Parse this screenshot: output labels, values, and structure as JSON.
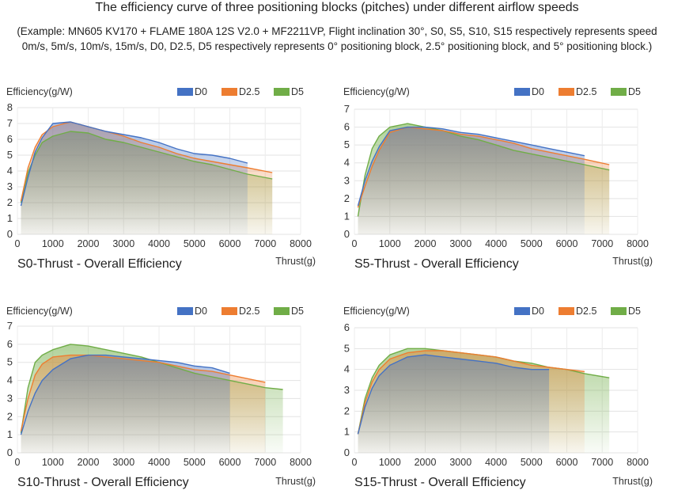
{
  "page": {
    "title": "The efficiency curve of three positioning blocks (pitches) under different airflow speeds",
    "subtitle": "(Example: MN605 KV170 + FLAME 180A 12S V2.0 + MF2211VP, Flight inclination 30°, S0, S5, S10, S15 respectively represents speed 0m/s, 5m/s, 10m/s, 15m/s, D0, D2.5, D5 respectively represents 0° positioning block, 2.5° positioning block, and 5° positioning block.)"
  },
  "colors": {
    "D0": "#4472c4",
    "D2.5": "#ed7d31",
    "D5": "#70ad47"
  },
  "chart_data": [
    {
      "type": "area",
      "title": "S0-Thrust - Overall Efficiency",
      "xlabel": "Thrust(g)",
      "ylabel": "Efficiency(g/W)",
      "xlim": [
        0,
        8000
      ],
      "ylim": [
        0,
        8
      ],
      "xticks": [
        "0",
        "1000",
        "2000",
        "3000",
        "4000",
        "5000",
        "6000",
        "7000",
        "8000"
      ],
      "yticks": [
        "0",
        "1",
        "2",
        "3",
        "4",
        "5",
        "6",
        "7",
        "8"
      ],
      "legend": "top-right",
      "grid": true,
      "series": [
        {
          "name": "D0",
          "points": [
            [
              100,
              1.8
            ],
            [
              300,
              3.6
            ],
            [
              500,
              5.2
            ],
            [
              700,
              6.1
            ],
            [
              1000,
              7.0
            ],
            [
              1500,
              7.1
            ],
            [
              2000,
              6.8
            ],
            [
              2500,
              6.5
            ],
            [
              3000,
              6.3
            ],
            [
              3500,
              6.1
            ],
            [
              4000,
              5.8
            ],
            [
              4500,
              5.4
            ],
            [
              5000,
              5.1
            ],
            [
              5500,
              5.0
            ],
            [
              6000,
              4.8
            ],
            [
              6500,
              4.5
            ]
          ]
        },
        {
          "name": "D2.5",
          "points": [
            [
              100,
              2.1
            ],
            [
              300,
              4.2
            ],
            [
              500,
              5.5
            ],
            [
              700,
              6.3
            ],
            [
              1000,
              6.8
            ],
            [
              1500,
              7.1
            ],
            [
              2000,
              6.8
            ],
            [
              2500,
              6.5
            ],
            [
              3000,
              6.2
            ],
            [
              3500,
              5.8
            ],
            [
              4000,
              5.5
            ],
            [
              4500,
              5.1
            ],
            [
              5000,
              4.8
            ],
            [
              5500,
              4.6
            ],
            [
              6000,
              4.4
            ],
            [
              6500,
              4.2
            ],
            [
              7200,
              3.9
            ]
          ]
        },
        {
          "name": "D5",
          "points": [
            [
              100,
              2.0
            ],
            [
              300,
              3.9
            ],
            [
              500,
              5.0
            ],
            [
              700,
              5.8
            ],
            [
              1000,
              6.2
            ],
            [
              1500,
              6.5
            ],
            [
              2000,
              6.4
            ],
            [
              2500,
              6.0
            ],
            [
              3000,
              5.8
            ],
            [
              3500,
              5.5
            ],
            [
              4000,
              5.2
            ],
            [
              4500,
              4.9
            ],
            [
              5000,
              4.6
            ],
            [
              5500,
              4.4
            ],
            [
              6000,
              4.1
            ],
            [
              6500,
              3.8
            ],
            [
              7200,
              3.5
            ]
          ]
        }
      ]
    },
    {
      "type": "area",
      "title": "S5-Thrust - Overall Efficiency",
      "xlabel": "Thrust(g)",
      "ylabel": "Efficiency(g/W)",
      "xlim": [
        0,
        8000
      ],
      "ylim": [
        0,
        7
      ],
      "xticks": [
        "0",
        "1000",
        "2000",
        "3000",
        "4000",
        "5000",
        "6000",
        "7000",
        "8000"
      ],
      "yticks": [
        "0",
        "1",
        "2",
        "3",
        "4",
        "5",
        "6",
        "7"
      ],
      "legend": "top-right",
      "grid": true,
      "series": [
        {
          "name": "D0",
          "points": [
            [
              100,
              1.6
            ],
            [
              300,
              3.0
            ],
            [
              500,
              4.1
            ],
            [
              700,
              4.9
            ],
            [
              1000,
              5.8
            ],
            [
              1500,
              6.0
            ],
            [
              2000,
              6.0
            ],
            [
              2500,
              5.9
            ],
            [
              3000,
              5.7
            ],
            [
              3500,
              5.6
            ],
            [
              4000,
              5.4
            ],
            [
              4500,
              5.2
            ],
            [
              5000,
              5.0
            ],
            [
              5500,
              4.8
            ],
            [
              6000,
              4.6
            ],
            [
              6500,
              4.4
            ]
          ]
        },
        {
          "name": "D2.5",
          "points": [
            [
              100,
              1.5
            ],
            [
              300,
              2.7
            ],
            [
              500,
              3.8
            ],
            [
              700,
              4.7
            ],
            [
              1000,
              5.7
            ],
            [
              1500,
              6.0
            ],
            [
              2000,
              5.9
            ],
            [
              2500,
              5.8
            ],
            [
              3000,
              5.6
            ],
            [
              3500,
              5.5
            ],
            [
              4000,
              5.3
            ],
            [
              4500,
              5.1
            ],
            [
              5000,
              4.8
            ],
            [
              5500,
              4.6
            ],
            [
              6000,
              4.4
            ],
            [
              6500,
              4.2
            ],
            [
              7200,
              3.9
            ]
          ]
        },
        {
          "name": "D5",
          "points": [
            [
              100,
              1.0
            ],
            [
              300,
              3.3
            ],
            [
              500,
              4.8
            ],
            [
              700,
              5.5
            ],
            [
              1000,
              6.0
            ],
            [
              1500,
              6.2
            ],
            [
              2000,
              6.0
            ],
            [
              2500,
              5.8
            ],
            [
              3000,
              5.5
            ],
            [
              3500,
              5.3
            ],
            [
              4000,
              5.0
            ],
            [
              4500,
              4.7
            ],
            [
              5000,
              4.5
            ],
            [
              5500,
              4.3
            ],
            [
              6000,
              4.1
            ],
            [
              6500,
              3.9
            ],
            [
              7200,
              3.6
            ]
          ]
        }
      ]
    },
    {
      "type": "area",
      "title": "S10-Thrust - Overall Efficiency",
      "xlabel": "Thrust(g)",
      "ylabel": "Efficiency(g/W)",
      "xlim": [
        0,
        8000
      ],
      "ylim": [
        0,
        7
      ],
      "xticks": [
        "0",
        "1000",
        "2000",
        "3000",
        "4000",
        "5000",
        "6000",
        "7000",
        "8000"
      ],
      "yticks": [
        "0",
        "1",
        "2",
        "3",
        "4",
        "5",
        "6",
        "7"
      ],
      "legend": "top-right",
      "grid": true,
      "series": [
        {
          "name": "D0",
          "points": [
            [
              100,
              1.0
            ],
            [
              300,
              2.3
            ],
            [
              500,
              3.3
            ],
            [
              700,
              4.0
            ],
            [
              1000,
              4.6
            ],
            [
              1500,
              5.2
            ],
            [
              2000,
              5.4
            ],
            [
              2500,
              5.4
            ],
            [
              3000,
              5.3
            ],
            [
              3500,
              5.2
            ],
            [
              4000,
              5.1
            ],
            [
              4500,
              5.0
            ],
            [
              5000,
              4.8
            ],
            [
              5500,
              4.7
            ],
            [
              6000,
              4.4
            ]
          ]
        },
        {
          "name": "D2.5",
          "points": [
            [
              100,
              1.2
            ],
            [
              300,
              3.0
            ],
            [
              500,
              4.3
            ],
            [
              700,
              4.9
            ],
            [
              1000,
              5.3
            ],
            [
              1500,
              5.4
            ],
            [
              2000,
              5.4
            ],
            [
              2500,
              5.3
            ],
            [
              3000,
              5.2
            ],
            [
              3500,
              5.1
            ],
            [
              4000,
              5.0
            ],
            [
              4500,
              4.8
            ],
            [
              5000,
              4.6
            ],
            [
              5500,
              4.5
            ],
            [
              6000,
              4.3
            ],
            [
              6500,
              4.1
            ],
            [
              7000,
              3.9
            ]
          ]
        },
        {
          "name": "D5",
          "points": [
            [
              100,
              1.1
            ],
            [
              300,
              3.6
            ],
            [
              500,
              5.0
            ],
            [
              700,
              5.4
            ],
            [
              1000,
              5.7
            ],
            [
              1500,
              6.0
            ],
            [
              2000,
              5.9
            ],
            [
              2500,
              5.7
            ],
            [
              3000,
              5.5
            ],
            [
              3500,
              5.3
            ],
            [
              4000,
              5.0
            ],
            [
              4500,
              4.7
            ],
            [
              5000,
              4.4
            ],
            [
              5500,
              4.2
            ],
            [
              6000,
              4.0
            ],
            [
              6500,
              3.8
            ],
            [
              7000,
              3.6
            ],
            [
              7500,
              3.5
            ]
          ]
        }
      ]
    },
    {
      "type": "area",
      "title": "S15-Thrust - Overall Efficiency",
      "xlabel": "Thrust(g)",
      "ylabel": "Efficiency(g/W)",
      "xlim": [
        0,
        8000
      ],
      "ylim": [
        0,
        6
      ],
      "xticks": [
        "0",
        "1000",
        "2000",
        "3000",
        "4000",
        "5000",
        "6000",
        "7000",
        "8000"
      ],
      "yticks": [
        "0",
        "1",
        "2",
        "3",
        "4",
        "5",
        "6"
      ],
      "legend": "top-right",
      "grid": true,
      "series": [
        {
          "name": "D0",
          "points": [
            [
              100,
              0.9
            ],
            [
              300,
              2.2
            ],
            [
              500,
              3.1
            ],
            [
              700,
              3.7
            ],
            [
              1000,
              4.2
            ],
            [
              1500,
              4.6
            ],
            [
              2000,
              4.7
            ],
            [
              2500,
              4.6
            ],
            [
              3000,
              4.5
            ],
            [
              3500,
              4.4
            ],
            [
              4000,
              4.3
            ],
            [
              4500,
              4.1
            ],
            [
              5000,
              4.0
            ],
            [
              5500,
              4.0
            ]
          ]
        },
        {
          "name": "D2.5",
          "points": [
            [
              100,
              0.9
            ],
            [
              300,
              2.4
            ],
            [
              500,
              3.4
            ],
            [
              700,
              4.0
            ],
            [
              1000,
              4.5
            ],
            [
              1500,
              4.8
            ],
            [
              2000,
              4.9
            ],
            [
              2500,
              4.9
            ],
            [
              3000,
              4.8
            ],
            [
              3500,
              4.7
            ],
            [
              4000,
              4.6
            ],
            [
              4500,
              4.4
            ],
            [
              5000,
              4.2
            ],
            [
              5500,
              4.1
            ],
            [
              6000,
              4.0
            ],
            [
              6500,
              3.9
            ]
          ]
        },
        {
          "name": "D5",
          "points": [
            [
              100,
              0.9
            ],
            [
              300,
              2.6
            ],
            [
              500,
              3.6
            ],
            [
              700,
              4.2
            ],
            [
              1000,
              4.7
            ],
            [
              1500,
              5.0
            ],
            [
              2000,
              5.0
            ],
            [
              2500,
              4.9
            ],
            [
              3000,
              4.8
            ],
            [
              3500,
              4.7
            ],
            [
              4000,
              4.6
            ],
            [
              4500,
              4.4
            ],
            [
              5000,
              4.3
            ],
            [
              5500,
              4.1
            ],
            [
              6000,
              4.0
            ],
            [
              6500,
              3.8
            ],
            [
              7200,
              3.6
            ]
          ]
        }
      ]
    }
  ]
}
